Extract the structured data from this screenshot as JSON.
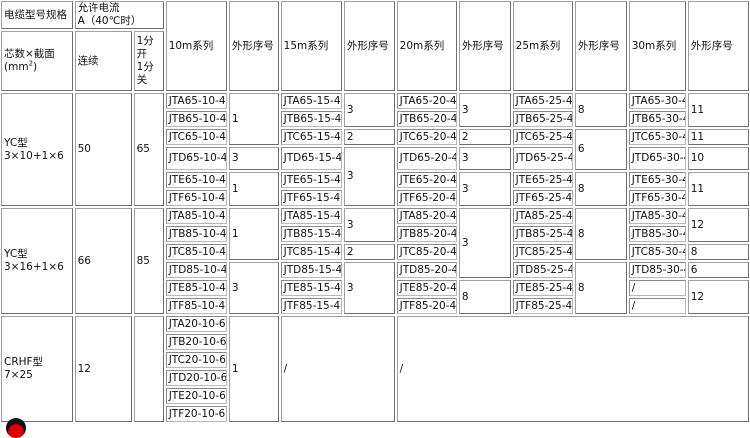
{
  "header": {
    "spec_label": "电缆型号规格",
    "current_label_1": "允许电流",
    "current_label_2": "A（40℃时）",
    "cores_label": "芯数×截面",
    "unit_label": "(mm",
    "unit_sup": "2",
    "unit_close": ")",
    "continuous_label": "连续",
    "intermittent_label_1": "1分开",
    "intermittent_label_2": "1分关",
    "series": [
      "10m系列",
      "15m系列",
      "20m系列",
      "25m系列",
      "30m系列"
    ],
    "shape_label": "外形序号"
  },
  "groups": [
    {
      "spec": [
        "YC型",
        "3×10+1×6"
      ],
      "continuous": "50",
      "intermittent": "65",
      "series": [
        {
          "models": [
            "JTA65-10-4",
            "JTB65-10-4",
            "JTC65-10-4",
            "JTD65-10-4",
            "JTE65-10-4",
            "JTF65-10-4"
          ],
          "shapes": [
            {
              "v": "1",
              "span": 3
            },
            {
              "v": "3",
              "span": 1
            },
            {
              "v": "1",
              "span": 2
            }
          ]
        },
        {
          "models": [
            "JTA65-15-4",
            "JTB65-15-4",
            "JTC65-15-4",
            "JTD65-15-4",
            "JTE65-15-4",
            "JTF65-15-4"
          ],
          "shapes": [
            {
              "v": "3",
              "span": 2
            },
            {
              "v": "2",
              "span": 1
            },
            {
              "v": "3",
              "span": 3
            }
          ]
        },
        {
          "models": [
            "JTA65-20-4",
            "JTB65-20-4",
            "JTC65-20-4",
            "JTD65-20-4",
            "JTE65-20-4",
            "JTF65-20-4"
          ],
          "shapes": [
            {
              "v": "3",
              "span": 2
            },
            {
              "v": "2",
              "span": 1
            },
            {
              "v": "3",
              "span": 1
            },
            {
              "v": "3",
              "span": 2
            }
          ]
        },
        {
          "models": [
            "JTA65-25-4",
            "JTB65-25-4",
            "JTC65-25-4",
            "JTD65-25-4",
            "JTE65-25-4",
            "JTF65-25-4"
          ],
          "shapes": [
            {
              "v": "8",
              "span": 2
            },
            {
              "v": "6",
              "span": 2
            },
            {
              "v": "8",
              "span": 2
            }
          ]
        },
        {
          "models": [
            "JTA65-30-4",
            "JTB65-30-4",
            "JTC65-30-4",
            "JTD65-30-4",
            "JTE65-30-4",
            "JTF65-30-4"
          ],
          "shapes": [
            {
              "v": "11",
              "span": 2
            },
            {
              "v": "11",
              "span": 1
            },
            {
              "v": "10",
              "span": 1
            },
            {
              "v": "11",
              "span": 2
            }
          ]
        }
      ]
    },
    {
      "spec": [
        "YC型",
        "3×16+1×6"
      ],
      "continuous": "66",
      "intermittent": "85",
      "series": [
        {
          "models": [
            "JTA85-10-4",
            "JTB85-10-4",
            "JTC85-10-4",
            "JTD85-10-4",
            "JTE85-10-4",
            "JTF85-10-4"
          ],
          "shapes": [
            {
              "v": "1",
              "span": 3
            },
            {
              "v": "3",
              "span": 3
            }
          ]
        },
        {
          "models": [
            "JTA85-15-4",
            "JTB85-15-4",
            "JTC85-15-4",
            "JTD85-15-4",
            "JTE85-15-4",
            "JTF85-15-4"
          ],
          "shapes": [
            {
              "v": "3",
              "span": 2
            },
            {
              "v": "2",
              "span": 1
            },
            {
              "v": "3",
              "span": 3
            }
          ]
        },
        {
          "models": [
            "JTA85-20-4",
            "JTB85-20-4",
            "JTC85-20-4",
            "JTD85-20-4",
            "JTE85-20-4",
            "JTF85-20-4"
          ],
          "shapes": [
            {
              "v": "3",
              "span": 4
            },
            {
              "v": "8",
              "span": 2
            }
          ]
        },
        {
          "models": [
            "JTA85-25-4",
            "JTB85-25-4",
            "JTC85-25-4",
            "JTD85-25-4",
            "JTE85-25-4",
            "JTF85-25-4"
          ],
          "shapes": [
            {
              "v": "8",
              "span": 3
            },
            {
              "v": "8",
              "span": 3
            }
          ]
        },
        {
          "models": [
            "JTA85-30-4",
            "JTB85-30-4",
            "JTC85-30-4",
            "JTD85-30-4",
            "/",
            "/"
          ],
          "shapes": [
            {
              "v": "12",
              "span": 2
            },
            {
              "v": "8",
              "span": 1
            },
            {
              "v": "6",
              "span": 1
            },
            {
              "v": "12",
              "span": 2
            }
          ]
        }
      ]
    },
    {
      "spec": [
        "CRHF型",
        "7×25"
      ],
      "continuous": "12",
      "intermittent": "",
      "series": [
        {
          "models": [
            "JTA20-10-6",
            "JTB20-10-6",
            "JTC20-10-6",
            "JTD20-10-6",
            "JTE20-10-6",
            "JTF20-10-6"
          ],
          "shapes": [
            {
              "v": "1",
              "span": 6
            }
          ]
        },
        {
          "merged": "/",
          "colspan": 2
        },
        {
          "merged": "/",
          "colspan": 6
        }
      ]
    }
  ]
}
